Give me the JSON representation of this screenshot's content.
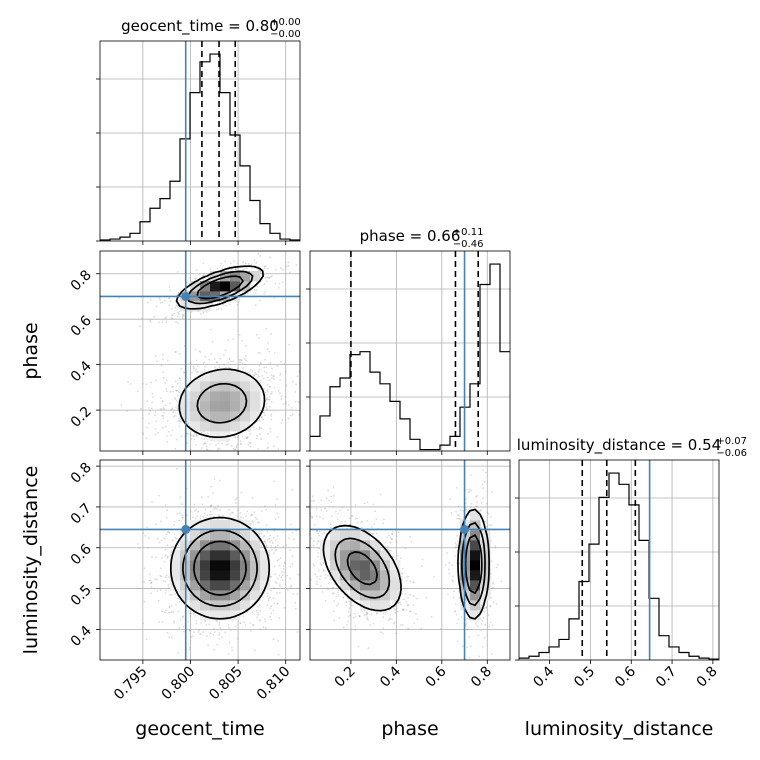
{
  "chart_data": {
    "type": "corner",
    "parameters": [
      {
        "name": "geocent_time",
        "range": [
          0.7905,
          0.8115
        ],
        "truth": 0.7995,
        "quantiles": [
          0.8012,
          0.803,
          0.8047
        ],
        "title": {
          "base": "geocent_time = 0.80",
          "sup": "+0.00",
          "sub": "−0.00"
        },
        "axis_label": "geocent_time",
        "ticks": [
          0.795,
          0.8,
          0.805,
          0.81
        ],
        "tick_labels": [
          "0.795",
          "0.800",
          "0.805",
          "0.810"
        ]
      },
      {
        "name": "phase",
        "range": [
          0.02,
          0.9
        ],
        "truth": 0.7,
        "quantiles": [
          0.2,
          0.66,
          0.76
        ],
        "title": {
          "base": "phase = 0.66",
          "sup": "+0.11",
          "sub": "−0.46"
        },
        "axis_label": "phase",
        "ticks": [
          0.2,
          0.4,
          0.6,
          0.8
        ],
        "tick_labels": [
          "0.2",
          "0.4",
          "0.6",
          "0.8"
        ]
      },
      {
        "name": "luminosity_distance",
        "range": [
          0.325,
          0.815
        ],
        "truth": 0.645,
        "quantiles": [
          0.48,
          0.54,
          0.61
        ],
        "title": {
          "base": "luminosity_distance = 0.54",
          "sup": "+0.07",
          "sub": "−0.06"
        },
        "axis_label": "luminosity_distance",
        "ticks": [
          0.4,
          0.5,
          0.6,
          0.7,
          0.8
        ],
        "tick_labels": [
          "0.4",
          "0.5",
          "0.6",
          "0.7",
          "0.8"
        ]
      }
    ],
    "hist_1d": [
      [
        0.5,
        1,
        2,
        4,
        10,
        17,
        22,
        31,
        53,
        77,
        93,
        97,
        77,
        55,
        39,
        21,
        9,
        4,
        1,
        0.5
      ],
      [
        5,
        12,
        22,
        25,
        33,
        34,
        27,
        23,
        17,
        11,
        4,
        0.5,
        0.5,
        2,
        5,
        15,
        23,
        57,
        64,
        34
      ],
      [
        1,
        2,
        4,
        7,
        11,
        22,
        42,
        62,
        87,
        100,
        94,
        83,
        64,
        33,
        13,
        7,
        4,
        2,
        1,
        0.5
      ]
    ],
    "modes_2d": {
      "geocent_time_vs_phase": [
        {
          "center": [
            0.8031,
            0.74
          ],
          "sd": [
            0.0022,
            0.045
          ],
          "rho": 0.65,
          "weight": 0.4
        },
        {
          "center": [
            0.8033,
            0.23
          ],
          "sd": [
            0.0027,
            0.09
          ],
          "rho": 0.1,
          "weight": 0.6
        }
      ],
      "geocent_time_vs_luminosity_distance": [
        {
          "center": [
            0.8031,
            0.55
          ],
          "sd": [
            0.0025,
            0.06
          ],
          "rho": 0.0,
          "weight": 1.0
        }
      ],
      "phase_vs_luminosity_distance": [
        {
          "center": [
            0.25,
            0.55
          ],
          "sd": [
            0.09,
            0.055
          ],
          "rho": -0.45,
          "weight": 0.6
        },
        {
          "center": [
            0.74,
            0.56
          ],
          "sd": [
            0.032,
            0.065
          ],
          "rho": 0.0,
          "weight": 0.4
        }
      ]
    },
    "truth_color": "#4682b4",
    "quantile_line_style": "dashed",
    "grid": true
  }
}
